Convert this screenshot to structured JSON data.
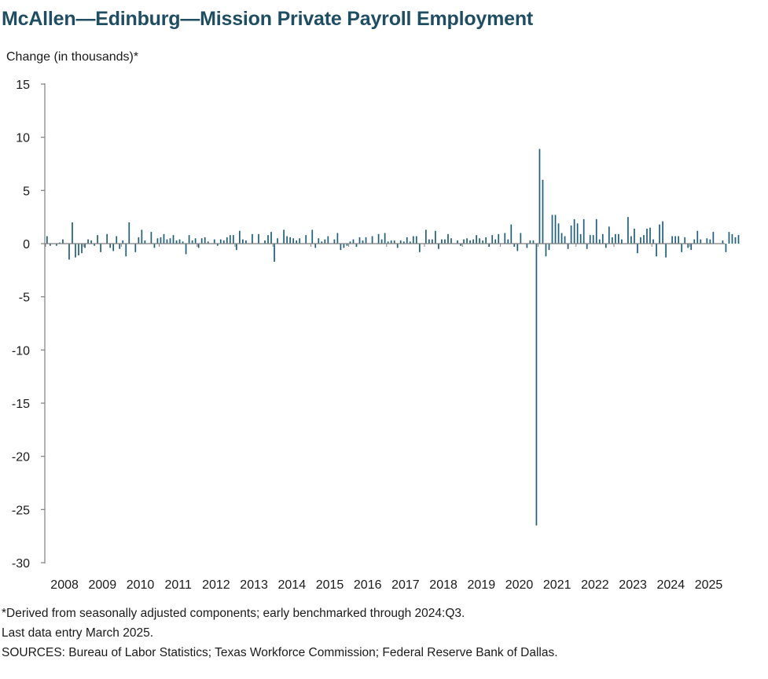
{
  "header": {
    "title": "McAllen—Edinburg—Mission Private Payroll Employment"
  },
  "footer": {
    "note": "*Derived from seasonally adjusted components; early benchmarked through 2024:Q3.",
    "last_entry": "Last data entry March 2025.",
    "sources": "SOURCES: Bureau of Labor Statistics; Texas Workforce Commission; Federal Reserve Bank of Dallas."
  },
  "chart_data": {
    "type": "bar",
    "title": "McAllen—Edinburg—Mission Private Payroll Employment",
    "ylabel": "Change (in thousands)*",
    "xlabel": "",
    "ylim": [
      -30,
      15
    ],
    "yticks": [
      15,
      10,
      5,
      0,
      -5,
      -10,
      -15,
      -20,
      -25,
      -30
    ],
    "xticks": [
      "2008",
      "2009",
      "2010",
      "2011",
      "2012",
      "2013",
      "2014",
      "2015",
      "2016",
      "2017",
      "2018",
      "2019",
      "2020",
      "2021",
      "2022",
      "2023",
      "2024",
      "2025"
    ],
    "grid": false,
    "legend": "none",
    "bar_color": "#1f5f7a",
    "x_start": "2008-01",
    "x_end": "2025-03",
    "values": [
      0.7,
      -0.2,
      0.0,
      -0.2,
      0.1,
      0.4,
      0.0,
      -1.5,
      2.0,
      -1.3,
      -1.1,
      -0.9,
      -0.4,
      0.4,
      0.3,
      -0.2,
      0.8,
      -0.8,
      0.0,
      0.9,
      -0.4,
      -0.7,
      0.7,
      -0.5,
      0.3,
      -1.2,
      2.0,
      0.0,
      -0.8,
      0.6,
      1.3,
      0.3,
      0.0,
      1.1,
      -0.4,
      0.5,
      0.6,
      0.9,
      0.4,
      0.5,
      0.8,
      0.3,
      0.4,
      0.2,
      -1.0,
      0.8,
      0.3,
      0.5,
      -0.4,
      0.5,
      0.6,
      0.2,
      0.0,
      0.4,
      -0.2,
      0.4,
      0.3,
      0.6,
      0.8,
      0.8,
      -0.6,
      1.2,
      0.4,
      0.3,
      0.0,
      0.9,
      0.0,
      0.9,
      0.0,
      0.3,
      0.8,
      1.1,
      -1.7,
      0.5,
      0.0,
      1.3,
      0.7,
      0.6,
      0.5,
      0.3,
      0.5,
      0.0,
      0.8,
      0.0,
      1.3,
      -0.4,
      0.5,
      0.2,
      0.4,
      0.7,
      0.0,
      0.4,
      1.0,
      -0.6,
      -0.4,
      -0.2,
      0.2,
      0.4,
      -0.3,
      0.6,
      0.3,
      0.6,
      0.0,
      0.7,
      0.0,
      0.9,
      0.4,
      1.0,
      0.2,
      0.3,
      0.3,
      -0.4,
      0.3,
      0.2,
      0.6,
      0.2,
      0.7,
      0.7,
      -0.8,
      0.0,
      1.3,
      0.4,
      0.4,
      1.2,
      -0.5,
      0.4,
      0.4,
      0.9,
      0.5,
      0.0,
      0.3,
      -0.2,
      0.4,
      0.5,
      0.3,
      0.4,
      0.8,
      0.5,
      0.3,
      0.6,
      -0.3,
      0.8,
      0.4,
      0.9,
      0.0,
      1.0,
      0.4,
      1.8,
      -0.3,
      -0.7,
      1.0,
      0.0,
      -0.4,
      0.3,
      0.3,
      -26.5,
      8.9,
      6.0,
      -1.2,
      -0.6,
      2.7,
      2.7,
      1.9,
      1.0,
      0.7,
      -0.5,
      1.7,
      2.3,
      1.9,
      0.9,
      2.3,
      -0.5,
      0.8,
      0.8,
      2.3,
      0.4,
      0.9,
      -0.4,
      1.6,
      0.6,
      0.9,
      0.9,
      0.4,
      0.0,
      2.5,
      0.7,
      1.4,
      -0.9,
      0.6,
      0.8,
      1.4,
      1.5,
      0.4,
      -1.2,
      1.8,
      2.1,
      -1.3,
      0.0,
      0.7,
      0.7,
      0.7,
      -0.8,
      0.6,
      -0.4,
      -0.6,
      0.4,
      1.2,
      0.4,
      0.0,
      0.5,
      0.4,
      1.1,
      0.0,
      0.0,
      0.3,
      -0.8,
      1.1,
      0.9,
      0.6,
      0.8,
      0.0,
      0.0,
      0.0,
      0.0,
      0.0,
      0.0,
      0.0,
      0.0,
      0.0,
      0.0,
      0.0,
      0.0,
      0.0,
      0.0,
      0.0,
      0.0,
      0.0,
      0.0,
      0.0,
      0.0
    ]
  }
}
